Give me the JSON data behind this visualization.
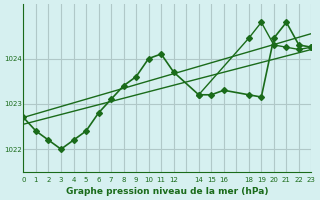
{
  "title": "Graphe pression niveau de la mer (hPa)",
  "bg_color": "#d6f0f0",
  "grid_color": "#b0c8c8",
  "line_color": "#1a6b1a",
  "marker_color": "#1a6b1a",
  "xlim": [
    0,
    23
  ],
  "ylim": [
    1021.5,
    1025.2
  ],
  "yticks": [
    1022,
    1023,
    1024
  ],
  "xtick_positions": [
    0,
    1,
    2,
    3,
    4,
    5,
    6,
    7,
    8,
    9,
    10,
    11,
    12,
    14,
    15,
    16,
    18,
    19,
    20,
    21,
    22,
    23
  ],
  "xtick_labels": [
    "0",
    "1",
    "2",
    "3",
    "4",
    "5",
    "6",
    "7",
    "8",
    "9",
    "10",
    "11",
    "12",
    "14",
    "15",
    "16",
    "18",
    "19",
    "20",
    "21",
    "22",
    "23"
  ],
  "main_line_x": [
    0,
    1,
    2,
    3,
    4,
    5,
    6,
    7,
    8,
    9,
    10,
    11,
    12,
    14,
    15,
    16,
    18,
    19,
    20,
    21,
    22,
    23
  ],
  "main_line_y": [
    1022.7,
    1022.4,
    1022.2,
    1022.0,
    1022.2,
    1022.4,
    1022.8,
    1023.1,
    1023.4,
    1023.6,
    1024.0,
    1024.1,
    1023.7,
    1023.2,
    1023.2,
    1023.3,
    1023.2,
    1023.15,
    1024.45,
    1024.8,
    1024.3,
    1024.25
  ],
  "trend_line1_x": [
    0,
    23
  ],
  "trend_line1_y": [
    1022.55,
    1024.2
  ],
  "trend_line2_x": [
    0,
    23
  ],
  "trend_line2_y": [
    1022.7,
    1024.55
  ],
  "extra_line_x": [
    14,
    18,
    19,
    20,
    21,
    22,
    23
  ],
  "extra_line_y": [
    1023.2,
    1024.45,
    1024.8,
    1024.3,
    1024.25,
    1024.2,
    1024.25
  ]
}
